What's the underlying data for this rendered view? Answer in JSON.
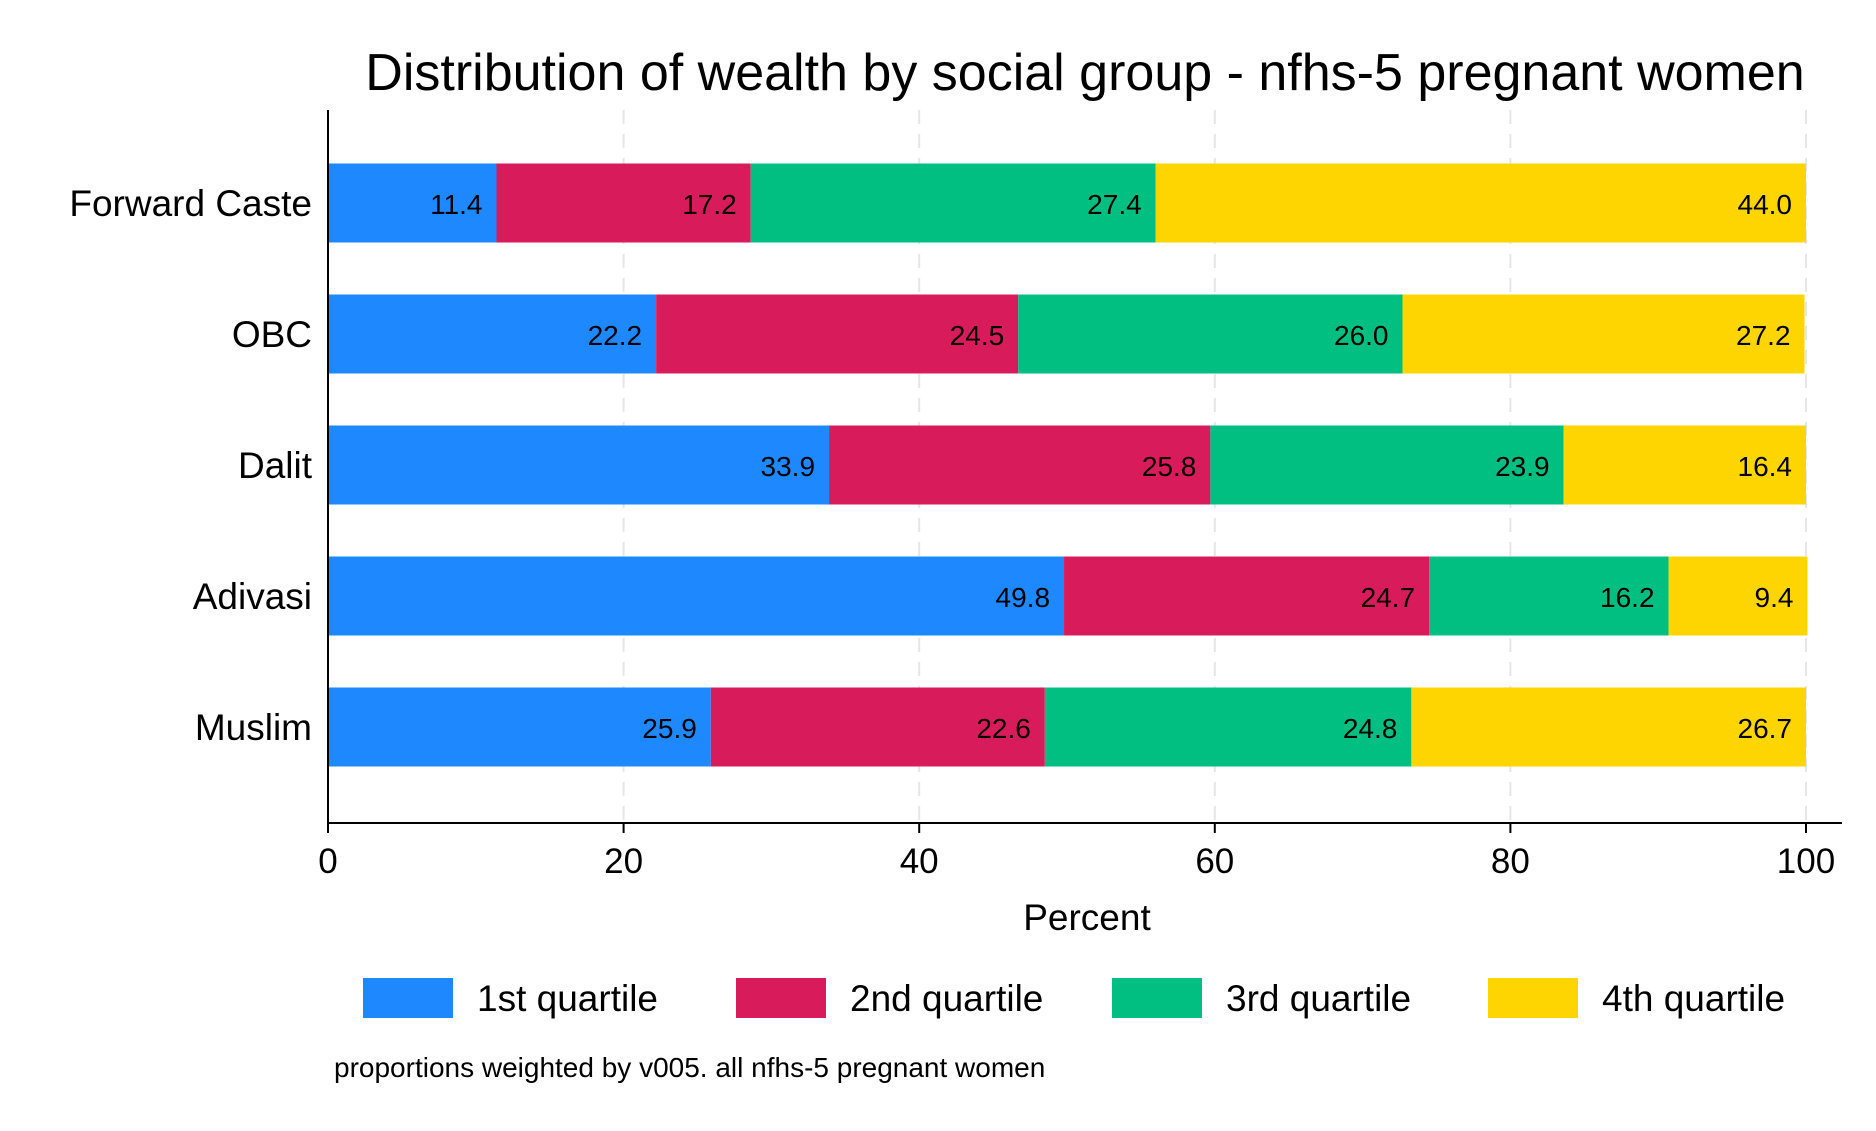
{
  "chart_data": {
    "type": "bar",
    "orientation": "horizontal",
    "stacked": true,
    "title": "Distribution of wealth by social group - nfhs-5 pregnant women",
    "xlabel": "Percent",
    "ylabel": "",
    "xlim": [
      0,
      100
    ],
    "xticks": [
      "0",
      "20",
      "40",
      "60",
      "80",
      "100"
    ],
    "grid": "vertical dashed",
    "legend_position": "bottom",
    "categories": [
      "Forward Caste",
      "OBC",
      "Dalit",
      "Adivasi",
      "Muslim"
    ],
    "series": [
      {
        "name": "1st quartile",
        "color": "#1E88FF",
        "values": [
          11.4,
          22.2,
          33.9,
          49.8,
          25.9
        ]
      },
      {
        "name": "2nd quartile",
        "color": "#D81B5A",
        "values": [
          17.2,
          24.5,
          25.8,
          24.7,
          22.6
        ]
      },
      {
        "name": "3rd quartile",
        "color": "#00BF80",
        "values": [
          27.4,
          26.0,
          23.9,
          16.2,
          24.8
        ]
      },
      {
        "name": "4th quartile",
        "color": "#FFD500",
        "values": [
          44.0,
          27.2,
          16.4,
          9.4,
          26.7
        ]
      }
    ],
    "note": "proportions weighted by v005. all nfhs-5 pregnant women"
  }
}
